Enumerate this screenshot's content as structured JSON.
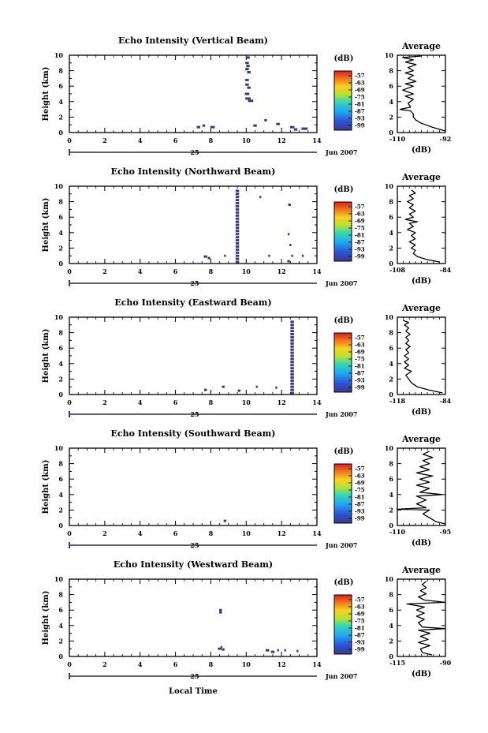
{
  "figure": {
    "xlabel": "Local Time",
    "ylabel": "Height (km)",
    "date_tick": "25",
    "date_label": "Jun 2007",
    "colorbar_unit": "(dB)",
    "colorbar_ticks": [
      "-57",
      "-63",
      "-69",
      "-75",
      "-81",
      "-87",
      "-93",
      "-99"
    ],
    "average_title": "Average",
    "average_xlabel": "(dB)",
    "x_ticks": [
      "0",
      "2",
      "4",
      "6",
      "8",
      "10",
      "12",
      "14"
    ],
    "y_ticks": [
      "0",
      "2",
      "4",
      "6",
      "8",
      "10"
    ],
    "echo_color": "#3a3a7a"
  },
  "chart_data": [
    {
      "type": "heatmap",
      "title": "Echo Intensity (Vertical Beam)",
      "xlabel": "Local Time",
      "ylabel": "Height (km)",
      "xlim": [
        0,
        14
      ],
      "ylim": [
        0,
        10
      ],
      "cells": [
        [
          10.1,
          9.7,
          0.2
        ],
        [
          10.05,
          9.0,
          0.2
        ],
        [
          10.1,
          8.6,
          0.2
        ],
        [
          10.05,
          8.2,
          0.2
        ],
        [
          10.15,
          7.8,
          0.2
        ],
        [
          10.05,
          6.8,
          0.2
        ],
        [
          10.05,
          6.2,
          0.2
        ],
        [
          10.15,
          5.8,
          0.2
        ],
        [
          10.05,
          5.0,
          0.25
        ],
        [
          10.1,
          4.4,
          0.3
        ],
        [
          10.25,
          4.1,
          0.3
        ],
        [
          10.5,
          0.9,
          0.2
        ],
        [
          11.1,
          1.6,
          0.15
        ],
        [
          11.8,
          1.1,
          0.2
        ],
        [
          7.6,
          0.9,
          0.15
        ],
        [
          7.3,
          0.7,
          0.2
        ],
        [
          8.1,
          0.7,
          0.25
        ],
        [
          12.6,
          0.7,
          0.25
        ],
        [
          12.8,
          0.4,
          0.2
        ],
        [
          13.3,
          0.5,
          0.35
        ]
      ],
      "average": {
        "xlim": [
          -110,
          -92
        ],
        "xticks": [
          "-110",
          "-92"
        ],
        "profile": [
          [
            -92,
            0.2
          ],
          [
            -97,
            0.7
          ],
          [
            -101,
            1.2
          ],
          [
            -103,
            1.6
          ],
          [
            -104,
            2.0
          ],
          [
            -104,
            2.4
          ],
          [
            -105,
            2.8
          ],
          [
            -109,
            3.0
          ],
          [
            -105,
            3.3
          ],
          [
            -106,
            3.8
          ],
          [
            -104,
            4.3
          ],
          [
            -107,
            4.7
          ],
          [
            -104,
            5.0
          ],
          [
            -108,
            5.5
          ],
          [
            -104,
            6.0
          ],
          [
            -107,
            6.3
          ],
          [
            -103,
            6.6
          ],
          [
            -106,
            7.0
          ],
          [
            -104,
            7.4
          ],
          [
            -107,
            7.7
          ],
          [
            -104,
            8.0
          ],
          [
            -106,
            8.4
          ],
          [
            -103,
            8.8
          ],
          [
            -107,
            9.1
          ],
          [
            -104,
            9.4
          ],
          [
            -108,
            9.7
          ],
          [
            -101,
            9.9
          ]
        ]
      }
    },
    {
      "type": "heatmap",
      "title": "Echo Intensity (Northward Beam)",
      "xlabel": "Local Time",
      "ylabel": "Height (km)",
      "xlim": [
        0,
        14
      ],
      "ylim": [
        0,
        10
      ],
      "cells": [
        [
          9.5,
          9.4,
          0.2
        ],
        [
          9.5,
          9.0,
          0.2
        ],
        [
          9.5,
          8.6,
          0.2
        ],
        [
          9.5,
          8.2,
          0.2
        ],
        [
          9.5,
          7.8,
          0.2
        ],
        [
          9.5,
          7.4,
          0.2
        ],
        [
          9.5,
          7.0,
          0.2
        ],
        [
          9.5,
          6.6,
          0.2
        ],
        [
          9.5,
          6.2,
          0.2
        ],
        [
          9.5,
          5.8,
          0.2
        ],
        [
          9.5,
          5.4,
          0.2
        ],
        [
          9.5,
          5.0,
          0.2
        ],
        [
          9.5,
          4.6,
          0.2
        ],
        [
          9.5,
          4.2,
          0.2
        ],
        [
          9.5,
          3.8,
          0.2
        ],
        [
          9.5,
          3.4,
          0.2
        ],
        [
          9.5,
          3.0,
          0.2
        ],
        [
          9.5,
          2.6,
          0.2
        ],
        [
          9.5,
          2.2,
          0.2
        ],
        [
          9.5,
          1.8,
          0.2
        ],
        [
          9.5,
          1.4,
          0.2
        ],
        [
          9.5,
          1.0,
          0.2
        ],
        [
          9.5,
          0.6,
          0.2
        ],
        [
          9.5,
          0.2,
          0.2
        ],
        [
          10.8,
          8.6,
          0.1
        ],
        [
          12.45,
          7.6,
          0.15
        ],
        [
          12.4,
          3.8,
          0.1
        ],
        [
          12.5,
          2.4,
          0.1
        ],
        [
          12.6,
          1.0,
          0.1
        ],
        [
          13.2,
          1.0,
          0.1
        ],
        [
          11.3,
          1.0,
          0.1
        ],
        [
          7.7,
          0.9,
          0.2
        ],
        [
          7.9,
          0.7,
          0.15
        ],
        [
          8.8,
          1.0,
          0.1
        ],
        [
          12.4,
          0.3,
          0.15
        ]
      ],
      "average": {
        "xlim": [
          -108,
          -84
        ],
        "xticks": [
          "-108",
          "-84"
        ],
        "profile": [
          [
            -87,
            0.2
          ],
          [
            -93,
            0.5
          ],
          [
            -98,
            0.9
          ],
          [
            -100,
            1.3
          ],
          [
            -99,
            1.7
          ],
          [
            -101,
            2.0
          ],
          [
            -99,
            2.4
          ],
          [
            -102,
            2.8
          ],
          [
            -99,
            3.2
          ],
          [
            -101,
            3.6
          ],
          [
            -99,
            4.0
          ],
          [
            -103,
            4.4
          ],
          [
            -100,
            4.8
          ],
          [
            -102,
            5.2
          ],
          [
            -98,
            5.4
          ],
          [
            -104,
            5.7
          ],
          [
            -100,
            6.0
          ],
          [
            -102,
            6.4
          ],
          [
            -99,
            6.8
          ],
          [
            -102,
            7.2
          ],
          [
            -100,
            7.6
          ],
          [
            -103,
            8.0
          ],
          [
            -100,
            8.4
          ],
          [
            -102,
            8.8
          ],
          [
            -99,
            9.1
          ],
          [
            -101,
            9.5
          ]
        ]
      }
    },
    {
      "type": "heatmap",
      "title": "Echo Intensity (Eastward Beam)",
      "xlabel": "Local Time",
      "ylabel": "Height (km)",
      "xlim": [
        0,
        14
      ],
      "ylim": [
        0,
        10
      ],
      "cells": [
        [
          12.6,
          9.4,
          0.2
        ],
        [
          12.6,
          9.0,
          0.2
        ],
        [
          12.6,
          8.6,
          0.2
        ],
        [
          12.6,
          8.2,
          0.2
        ],
        [
          12.6,
          7.8,
          0.2
        ],
        [
          12.6,
          7.4,
          0.2
        ],
        [
          12.6,
          7.0,
          0.2
        ],
        [
          12.6,
          6.6,
          0.2
        ],
        [
          12.6,
          6.2,
          0.2
        ],
        [
          12.6,
          5.8,
          0.2
        ],
        [
          12.6,
          5.4,
          0.2
        ],
        [
          12.6,
          5.0,
          0.2
        ],
        [
          12.6,
          4.6,
          0.2
        ],
        [
          12.6,
          4.2,
          0.2
        ],
        [
          12.6,
          3.8,
          0.2
        ],
        [
          12.6,
          3.4,
          0.2
        ],
        [
          12.6,
          3.0,
          0.2
        ],
        [
          12.6,
          2.6,
          0.2
        ],
        [
          12.6,
          2.2,
          0.2
        ],
        [
          12.6,
          1.8,
          0.2
        ],
        [
          12.6,
          1.4,
          0.2
        ],
        [
          12.6,
          1.0,
          0.2
        ],
        [
          12.6,
          0.6,
          0.2
        ],
        [
          12.6,
          0.2,
          0.2
        ],
        [
          7.7,
          0.6,
          0.15
        ],
        [
          8.7,
          1.0,
          0.15
        ],
        [
          9.6,
          0.5,
          0.15
        ],
        [
          10.6,
          1.0,
          0.1
        ],
        [
          11.7,
          0.9,
          0.1
        ]
      ],
      "average": {
        "xlim": [
          -118,
          -84
        ],
        "xticks": [
          "-118",
          "-84"
        ],
        "profile": [
          [
            -86,
            0.2
          ],
          [
            -96,
            0.6
          ],
          [
            -104,
            1.0
          ],
          [
            -108,
            1.5
          ],
          [
            -110,
            2.0
          ],
          [
            -112,
            2.5
          ],
          [
            -108,
            3.0
          ],
          [
            -113,
            3.4
          ],
          [
            -110,
            3.8
          ],
          [
            -113,
            4.2
          ],
          [
            -110,
            4.6
          ],
          [
            -113,
            5.0
          ],
          [
            -110,
            5.4
          ],
          [
            -112,
            5.8
          ],
          [
            -109,
            6.2
          ],
          [
            -112,
            6.6
          ],
          [
            -110,
            7.0
          ],
          [
            -112,
            7.4
          ],
          [
            -109,
            7.8
          ],
          [
            -112,
            8.2
          ],
          [
            -110,
            8.6
          ],
          [
            -113,
            9.0
          ],
          [
            -110,
            9.3
          ],
          [
            -114,
            9.6
          ]
        ]
      }
    },
    {
      "type": "heatmap",
      "title": "Echo Intensity (Southward Beam)",
      "xlabel": "Local Time",
      "ylabel": "Height (km)",
      "xlim": [
        0,
        14
      ],
      "ylim": [
        0,
        10
      ],
      "cells": [
        [
          8.8,
          0.6,
          0.15
        ]
      ],
      "average": {
        "xlim": [
          -110,
          -95
        ],
        "xticks": [
          "-110",
          "-95"
        ],
        "profile": [
          [
            -95,
            0.2
          ],
          [
            -98,
            0.5
          ],
          [
            -100,
            1.0
          ],
          [
            -102,
            1.5
          ],
          [
            -100,
            2.0
          ],
          [
            -110,
            2.1
          ],
          [
            -101,
            2.3
          ],
          [
            -104,
            2.8
          ],
          [
            -101,
            3.3
          ],
          [
            -104,
            3.8
          ],
          [
            -96,
            4.0
          ],
          [
            -103,
            4.3
          ],
          [
            -100,
            4.8
          ],
          [
            -104,
            5.2
          ],
          [
            -100,
            5.6
          ],
          [
            -103,
            6.0
          ],
          [
            -99,
            6.4
          ],
          [
            -104,
            6.8
          ],
          [
            -100,
            7.2
          ],
          [
            -103,
            7.6
          ],
          [
            -100,
            8.0
          ],
          [
            -102,
            8.4
          ],
          [
            -99,
            8.8
          ],
          [
            -102,
            9.2
          ],
          [
            -100,
            9.6
          ]
        ]
      }
    },
    {
      "type": "heatmap",
      "title": "Echo Intensity (Westward Beam)",
      "xlabel": "Local Time",
      "ylabel": "Height (km)",
      "xlim": [
        0,
        14
      ],
      "ylim": [
        0,
        10
      ],
      "cells": [
        [
          8.55,
          6.0,
          0.15
        ],
        [
          8.55,
          5.7,
          0.15
        ],
        [
          8.5,
          1.0,
          0.2
        ],
        [
          8.7,
          0.9,
          0.15
        ],
        [
          8.6,
          1.2,
          0.1
        ],
        [
          11.2,
          0.8,
          0.2
        ],
        [
          11.5,
          0.6,
          0.2
        ],
        [
          11.8,
          0.8,
          0.1
        ],
        [
          12.2,
          0.8,
          0.1
        ],
        [
          12.9,
          0.7,
          0.1
        ]
      ],
      "average": {
        "xlim": [
          -115,
          -90
        ],
        "xticks": [
          "-115",
          "-90"
        ],
        "profile": [
          [
            -97,
            0.2
          ],
          [
            -102,
            0.5
          ],
          [
            -103,
            1.0
          ],
          [
            -98,
            1.4
          ],
          [
            -104,
            1.8
          ],
          [
            -99,
            2.2
          ],
          [
            -103,
            2.6
          ],
          [
            -98,
            3.0
          ],
          [
            -104,
            3.4
          ],
          [
            -90,
            3.6
          ],
          [
            -102,
            3.8
          ],
          [
            -104,
            4.4
          ],
          [
            -101,
            4.8
          ],
          [
            -105,
            5.2
          ],
          [
            -101,
            5.6
          ],
          [
            -105,
            6.0
          ],
          [
            -101,
            6.4
          ],
          [
            -110,
            6.8
          ],
          [
            -90,
            7.0
          ],
          [
            -101,
            7.3
          ],
          [
            -104,
            7.7
          ],
          [
            -100,
            8.1
          ],
          [
            -103,
            8.5
          ],
          [
            -100,
            8.9
          ],
          [
            -102,
            9.3
          ],
          [
            -100,
            9.7
          ]
        ]
      }
    }
  ]
}
